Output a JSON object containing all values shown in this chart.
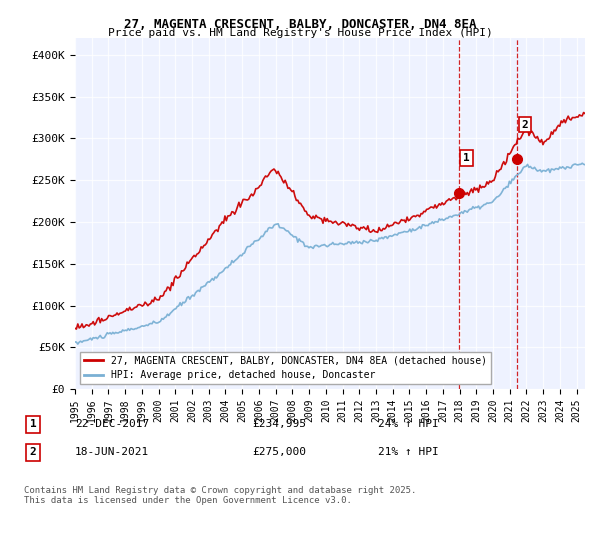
{
  "title": "27, MAGENTA CRESCENT, BALBY, DONCASTER, DN4 8EA",
  "subtitle": "Price paid vs. HM Land Registry's House Price Index (HPI)",
  "ylabel_ticks": [
    "£0",
    "£50K",
    "£100K",
    "£150K",
    "£200K",
    "£250K",
    "£300K",
    "£350K",
    "£400K"
  ],
  "ytick_values": [
    0,
    50000,
    100000,
    150000,
    200000,
    250000,
    300000,
    350000,
    400000
  ],
  "ylim": [
    0,
    420000
  ],
  "xlim_start": 1995.0,
  "xlim_end": 2025.5,
  "purchase1_date": 2017.97,
  "purchase1_price": 234995,
  "purchase2_date": 2021.46,
  "purchase2_price": 275000,
  "red_color": "#cc0000",
  "blue_color": "#7ab0d4",
  "legend1_text": "27, MAGENTA CRESCENT, BALBY, DONCASTER, DN4 8EA (detached house)",
  "legend2_text": "HPI: Average price, detached house, Doncaster",
  "annotation1": [
    "1",
    "22-DEC-2017",
    "£234,995",
    "24% ↑ HPI"
  ],
  "annotation2": [
    "2",
    "18-JUN-2021",
    "£275,000",
    "21% ↑ HPI"
  ],
  "footer": "Contains HM Land Registry data © Crown copyright and database right 2025.\nThis data is licensed under the Open Government Licence v3.0.",
  "background_color": "#eef2ff"
}
